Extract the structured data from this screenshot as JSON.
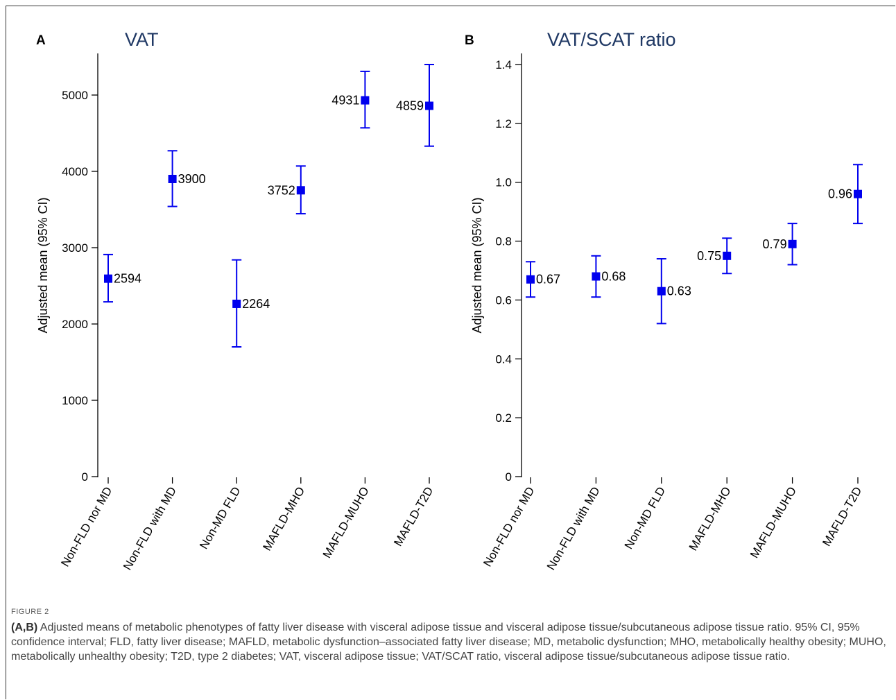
{
  "figure": {
    "label": "FIGURE 2",
    "caption_bold": "(A,B)",
    "caption_text": " Adjusted means of metabolic phenotypes of fatty liver disease with visceral adipose tissue and visceral adipose tissue/subcutaneous adipose tissue ratio. 95% CI, 95% confidence interval; FLD, fatty liver disease; MAFLD, metabolic dysfunction–associated fatty liver disease; MD, metabolic dysfunction; MHO, metabolically healthy obesity; MUHO, metabolically unhealthy obesity; T2D, type 2 diabetes; VAT, visceral adipose tissue; VAT/SCAT ratio, visceral adipose tissue/subcutaneous adipose tissue ratio."
  },
  "colors": {
    "marker": "#0000ee",
    "axis": "#000000",
    "text": "#000000",
    "title": "#1f3864"
  },
  "chart_data": [
    {
      "panel": "A",
      "type": "scatter",
      "title": "VAT",
      "ylabel": "Adjusted mean (95% CI)",
      "xlabel": "",
      "ylim": [
        0,
        5500
      ],
      "yticks": [
        0,
        1000,
        2000,
        3000,
        4000,
        5000
      ],
      "tick_labels": [
        "0",
        "1000",
        "2000",
        "3000",
        "4000",
        "5000"
      ],
      "categories": [
        "Non-FLD nor MD",
        "Non-FLD with MD",
        "Non-MD FLD",
        "MAFLD-MHO",
        "MAFLD-MUHO",
        "MAFLD-T2D"
      ],
      "values": [
        2594,
        3900,
        2264,
        3752,
        4931,
        4859
      ],
      "ci_low": [
        2290,
        3540,
        1700,
        3445,
        4570,
        4330
      ],
      "ci_high": [
        2910,
        4270,
        2840,
        4070,
        5310,
        5400
      ],
      "data_labels": [
        "2594",
        "3900",
        "2264",
        "3752",
        "4931",
        "4859"
      ],
      "label_side": [
        "right",
        "right",
        "right",
        "left",
        "left",
        "left"
      ]
    },
    {
      "panel": "B",
      "type": "scatter",
      "title": "VAT/SCAT ratio",
      "ylabel": "Adjusted mean (95% CI)",
      "xlabel": "",
      "ylim": [
        0,
        1.43
      ],
      "yticks": [
        0,
        0.2,
        0.4,
        0.6,
        0.8,
        1.0,
        1.2,
        1.4
      ],
      "tick_labels": [
        "0",
        "0.2",
        "0.4",
        "0.6",
        "0.8",
        "1.0",
        "1.2",
        "1.4"
      ],
      "categories": [
        "Non-FLD nor MD",
        "Non-FLD with MD",
        "Non-MD FLD",
        "MAFLD-MHO",
        "MAFLD-MUHO",
        "MAFLD-T2D"
      ],
      "values": [
        0.67,
        0.68,
        0.63,
        0.75,
        0.79,
        0.96
      ],
      "ci_low": [
        0.61,
        0.61,
        0.52,
        0.69,
        0.72,
        0.86
      ],
      "ci_high": [
        0.73,
        0.75,
        0.74,
        0.81,
        0.86,
        1.06
      ],
      "data_labels": [
        "0.67",
        "0.68",
        "0.63",
        "0.75",
        "0.79",
        "0.96"
      ],
      "label_side": [
        "right",
        "right",
        "right",
        "left",
        "left",
        "left"
      ]
    }
  ]
}
